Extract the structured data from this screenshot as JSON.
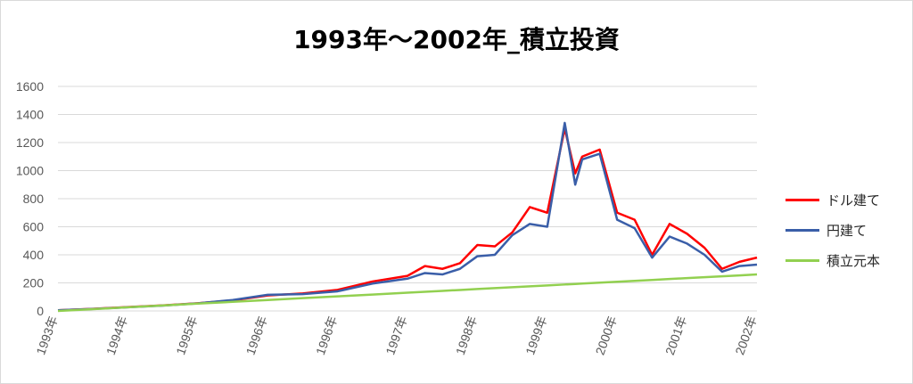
{
  "chart_data": {
    "type": "line",
    "title": "1993年～2002年_積立投資",
    "xlabel": "",
    "ylabel": "",
    "ylim": [
      0,
      1600
    ],
    "yticks": [
      0,
      200,
      400,
      600,
      800,
      1000,
      1200,
      1400,
      1600
    ],
    "xticks": [
      "1993年",
      "1994年",
      "1995年",
      "1996年",
      "1996年",
      "1997年",
      "1998年",
      "1999年",
      "2000年",
      "2001年",
      "2002年"
    ],
    "grid": true,
    "legend_position": "right",
    "x": [
      0,
      0.5,
      1,
      1.5,
      2,
      2.5,
      3,
      3.5,
      4,
      4.5,
      5,
      5.25,
      5.5,
      5.75,
      6,
      6.25,
      6.5,
      6.75,
      7,
      7.25,
      7.4,
      7.5,
      7.75,
      8,
      8.25,
      8.5,
      8.75,
      9,
      9.25,
      9.5,
      9.75,
      10
    ],
    "series": [
      {
        "name": "ドル建て",
        "color": "#ff0000",
        "values": [
          5,
          15,
          28,
          40,
          55,
          75,
          110,
          125,
          150,
          210,
          250,
          320,
          300,
          340,
          470,
          460,
          560,
          740,
          700,
          1300,
          980,
          1100,
          1150,
          700,
          650,
          400,
          620,
          550,
          450,
          300,
          350,
          380
        ]
      },
      {
        "name": "円建て",
        "color": "#3a5ea8",
        "values": [
          5,
          14,
          26,
          38,
          54,
          78,
          115,
          120,
          140,
          195,
          230,
          270,
          260,
          300,
          390,
          400,
          540,
          620,
          600,
          1340,
          900,
          1080,
          1120,
          650,
          590,
          380,
          530,
          480,
          400,
          280,
          320,
          330
        ]
      },
      {
        "name": "積立元本",
        "color": "#92d050",
        "values": [
          0,
          13,
          26,
          39,
          52,
          65,
          78,
          91,
          104,
          117,
          130,
          136.5,
          143,
          149.5,
          156,
          162.5,
          169,
          175.5,
          182,
          188.5,
          192.4,
          195,
          201.5,
          208,
          214.5,
          221,
          227.5,
          234,
          240.5,
          247,
          253.5,
          260
        ]
      }
    ]
  }
}
